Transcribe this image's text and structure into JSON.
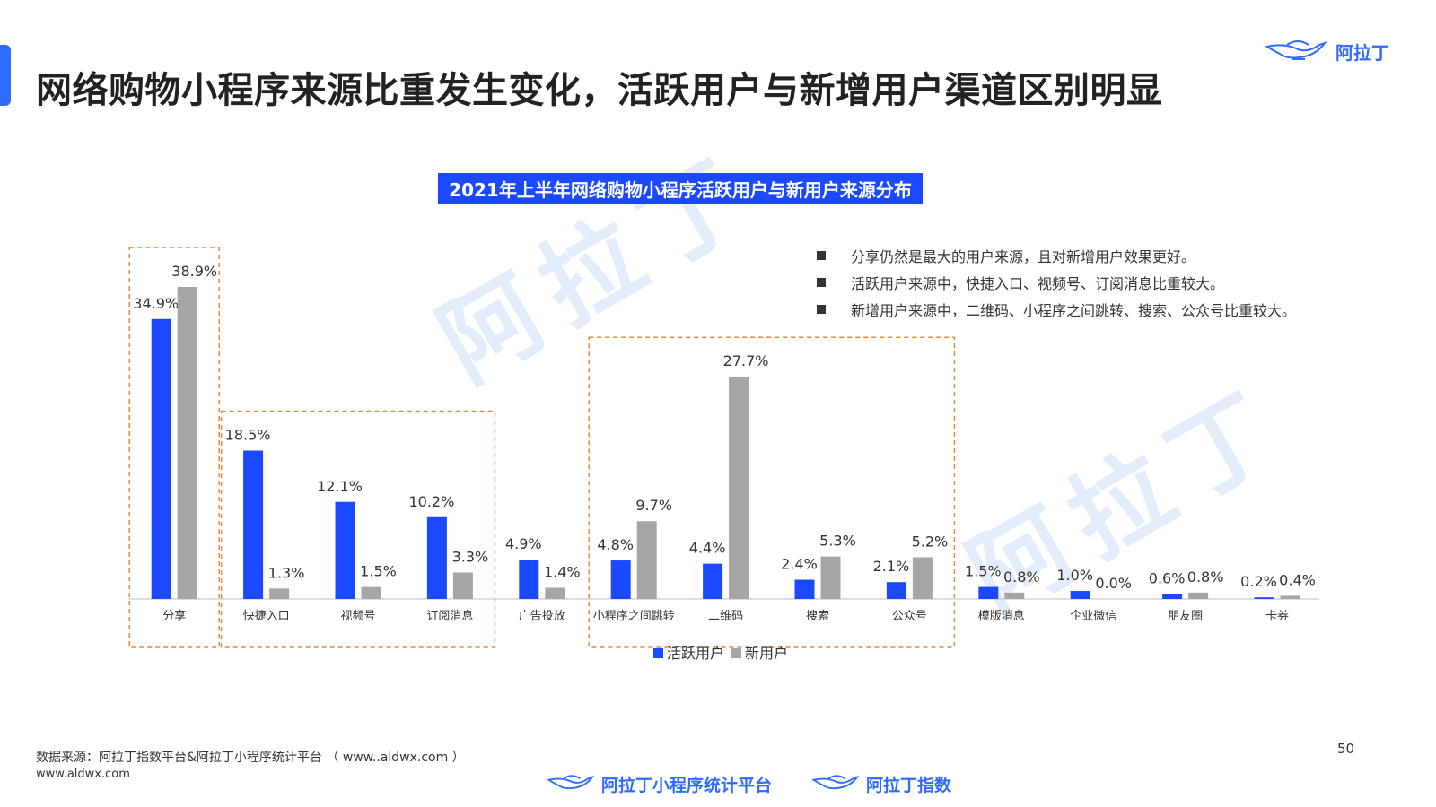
{
  "page": {
    "title": "网络购物小程序来源比重发生变化，活跃用户与新增用户渠道区别明显",
    "page_number": "50"
  },
  "branding": {
    "logo_text": "阿拉丁",
    "watermark": "阿拉丁",
    "bottom_logos": [
      "阿拉丁小程序统计平台",
      "阿拉丁指数"
    ]
  },
  "notes": [
    "分享仍然是最大的用户来源，且对新增用户效果更好。",
    "活跃用户来源中，快捷入口、视频号、订阅消息比重较大。",
    "新增用户来源中，二维码、小程序之间跳转、搜索、公众号比重较大。"
  ],
  "footer": {
    "source": "数据来源：阿拉丁指数平台&阿拉丁小程序统计平台 （ www..aldwx.com ）",
    "url": "www.aldwx.com"
  },
  "chart_data": {
    "type": "bar",
    "title": "2021年上半年网络购物小程序活跃用户与新用户来源分布",
    "categories": [
      "分享",
      "快捷入口",
      "视频号",
      "订阅消息",
      "广告投放",
      "小程序之间跳转",
      "二维码",
      "搜索",
      "公众号",
      "模版消息",
      "企业微信",
      "朋友圈",
      "卡券"
    ],
    "series": [
      {
        "name": "活跃用户",
        "color": "#1a49ff",
        "values": [
          34.9,
          18.5,
          12.1,
          10.2,
          4.9,
          4.8,
          4.4,
          2.4,
          2.1,
          1.5,
          1.0,
          0.6,
          0.2
        ]
      },
      {
        "name": "新用户",
        "color": "#a6a6a6",
        "values": [
          38.9,
          1.3,
          1.5,
          3.3,
          1.4,
          9.7,
          27.7,
          5.3,
          5.2,
          0.8,
          0.0,
          0.8,
          0.4
        ]
      }
    ],
    "value_suffix": "%",
    "ylim": [
      0,
      38.9
    ],
    "grid": false,
    "legend_position": "bottom-center",
    "highlight_groups": [
      [
        "分享"
      ],
      [
        "快捷入口",
        "视频号",
        "订阅消息"
      ],
      [
        "小程序之间跳转",
        "二维码",
        "搜索",
        "公众号"
      ]
    ],
    "highlight_color": "#e08a3c"
  }
}
